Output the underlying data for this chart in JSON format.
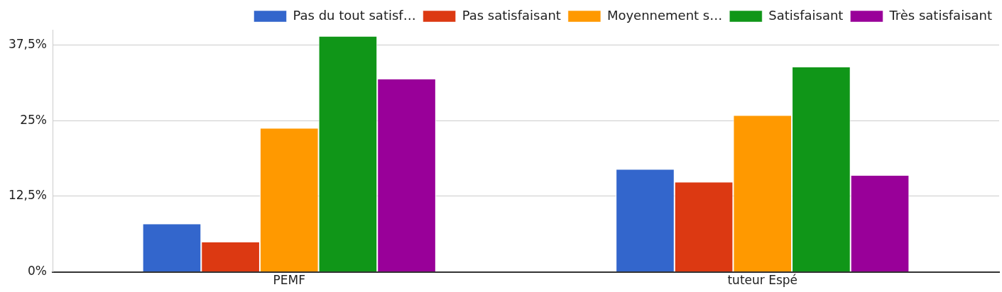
{
  "chart_data": {
    "type": "bar",
    "categories": [
      "PEMF",
      "tuteur Espé"
    ],
    "series": [
      {
        "name": "Pas du tout satisf…",
        "color": "#3366cc",
        "values": [
          7.9,
          16.9
        ]
      },
      {
        "name": "Pas satisfaisant",
        "color": "#dc3912",
        "values": [
          4.9,
          14.8
        ]
      },
      {
        "name": "Moyennement s…",
        "color": "#ff9900",
        "values": [
          23.7,
          25.8
        ]
      },
      {
        "name": "Satisfaisant",
        "color": "#109618",
        "values": [
          38.9,
          33.8
        ]
      },
      {
        "name": "Très satisfaisant",
        "color": "#990099",
        "values": [
          31.8,
          15.9
        ]
      }
    ],
    "ylim": [
      0,
      40
    ],
    "yticks": [
      {
        "value": 0,
        "label": "0%"
      },
      {
        "value": 12.5,
        "label": "12,5%"
      },
      {
        "value": 25,
        "label": "25%"
      },
      {
        "value": 37.5,
        "label": "37,5%"
      }
    ],
    "grid": "y",
    "legend": "top"
  }
}
